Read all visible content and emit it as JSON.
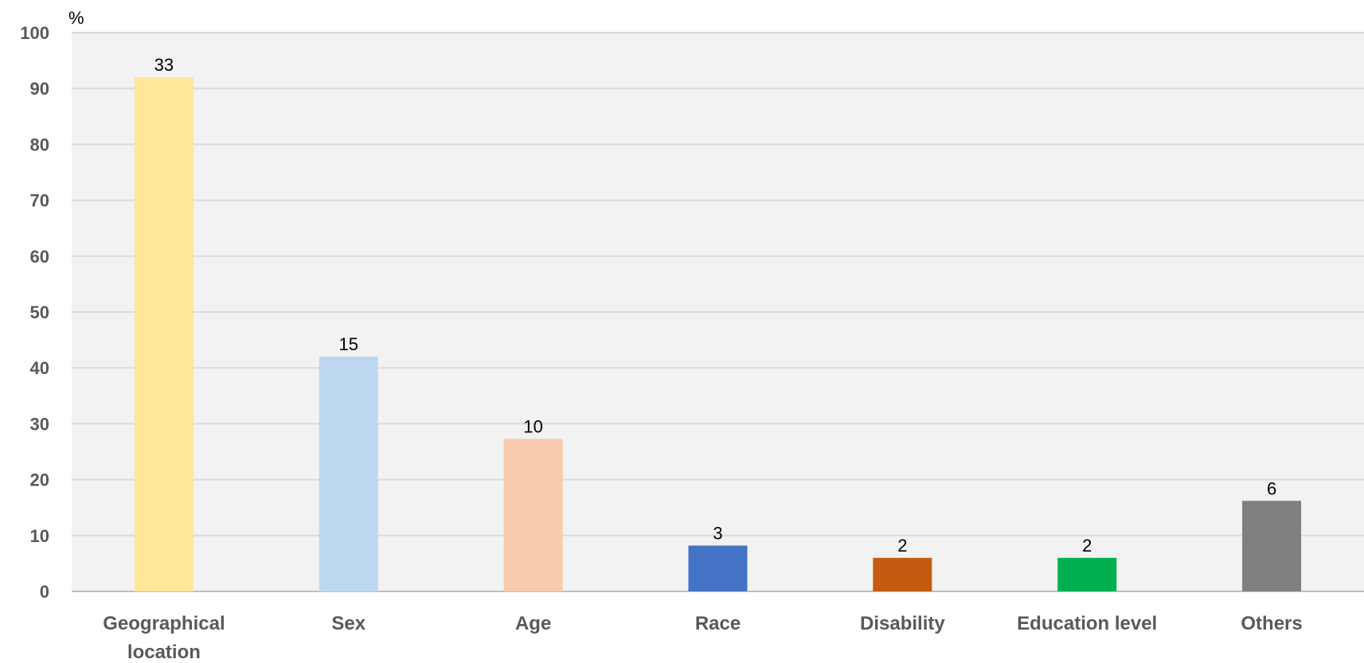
{
  "chart_data": {
    "type": "bar",
    "unit_label": "%",
    "categories": [
      "Geographical location",
      "Sex",
      "Age",
      "Race",
      "Disability",
      "Education level",
      "Others"
    ],
    "category_lines": [
      [
        "Geographical",
        "location"
      ],
      [
        "Sex"
      ],
      [
        "Age"
      ],
      [
        "Race"
      ],
      [
        "Disability"
      ],
      [
        "Education level"
      ],
      [
        "Others"
      ]
    ],
    "values": [
      92,
      42,
      27.3,
      8.2,
      6,
      6,
      16.2
    ],
    "data_labels": [
      "33",
      "15",
      "10",
      "3",
      "2",
      "2",
      "6"
    ],
    "colors": [
      "#FFE699",
      "#BDD7EE",
      "#F8CBAD",
      "#4472C4",
      "#C55A11",
      "#00B050",
      "#7F7F7F"
    ],
    "ylim": [
      0,
      100
    ],
    "yticks": [
      0,
      10,
      20,
      30,
      40,
      50,
      60,
      70,
      80,
      90,
      100
    ],
    "grid": true,
    "plot_background": "#F2F2F2",
    "gridline_color": "#D9D9D9",
    "title": "",
    "xlabel": "",
    "ylabel": ""
  }
}
